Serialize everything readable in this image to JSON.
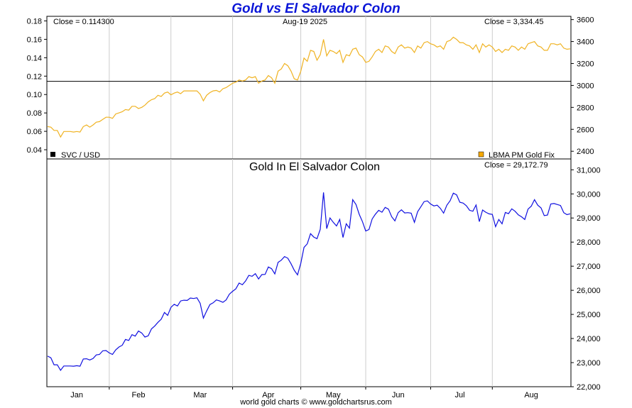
{
  "title": "Gold vs El Salvador Colon",
  "footer": "world gold charts © www.goldchartsrus.com",
  "colors": {
    "gold_line": "#f0b323",
    "colon_line": "#1010e0",
    "ratio_line": "#000000",
    "title": "#0b16d8",
    "legend_gold": "#f5a800",
    "legend_svc": "#000000"
  },
  "chart_data": [
    {
      "type": "line",
      "panel": "top",
      "date_label": "Aug-19  2025",
      "left_axis": {
        "ticks": [
          "0.18",
          "0.16",
          "0.14",
          "0.12",
          "0.10",
          "0.08",
          "0.06",
          "0.04"
        ],
        "values": [
          0.18,
          0.16,
          0.14,
          0.12,
          0.1,
          0.08,
          0.06,
          0.04
        ],
        "ylim": [
          0.03,
          0.185
        ]
      },
      "right_axis": {
        "ticks": [
          "3600",
          "3400",
          "3200",
          "3000",
          "2800",
          "2600",
          "2400"
        ],
        "values": [
          3600,
          3400,
          3200,
          3000,
          2800,
          2600,
          2400
        ],
        "ylim": [
          2330,
          3630
        ]
      },
      "left_close_label": "Close = 0.114300",
      "right_close_label": "Close = 3,334.45",
      "legend": {
        "svc": "SVC / USD",
        "gold": "LBMA PM Gold Fix"
      },
      "series": [
        {
          "name": "SVC / USD",
          "axis": "left",
          "color": "#000000",
          "x": [
            0,
            161
          ],
          "values": [
            0.1143,
            0.1143
          ]
        },
        {
          "name": "LBMA PM Gold Fix",
          "axis": "right",
          "color": "#f0b323",
          "x": [
            0,
            1,
            2,
            3,
            4,
            5,
            6,
            7,
            8,
            9,
            10,
            11,
            12,
            13,
            14,
            15,
            16,
            17,
            18,
            19,
            20,
            21,
            22,
            23,
            24,
            25,
            26,
            27,
            28,
            29,
            30,
            31,
            32,
            33,
            34,
            35,
            36,
            37,
            38,
            39,
            40,
            41,
            42,
            43,
            44,
            45,
            46,
            47,
            48,
            49,
            50,
            51,
            52,
            53,
            54,
            55,
            56,
            57,
            58,
            59,
            60,
            61,
            62,
            63,
            64,
            65,
            66,
            67,
            68,
            69,
            70,
            71,
            72,
            73,
            74,
            75,
            76,
            77,
            78,
            79,
            80,
            81,
            82,
            83,
            84,
            85,
            86,
            87,
            88,
            89,
            90,
            91,
            92,
            93,
            94,
            95,
            96,
            97,
            98,
            99,
            100,
            101,
            102,
            103,
            104,
            105,
            106,
            107,
            108,
            109,
            110,
            111,
            112,
            113,
            114,
            115,
            116,
            117,
            118,
            119,
            120,
            121,
            122,
            123,
            124,
            125,
            126,
            127,
            128,
            129,
            130,
            131,
            132,
            133,
            134,
            135,
            136,
            137,
            138,
            139,
            140,
            141,
            142,
            143,
            144,
            145,
            146,
            147,
            148,
            149,
            150,
            151,
            152,
            153,
            154,
            155,
            156,
            157,
            158,
            159,
            160,
            161
          ],
          "values": [
            2625,
            2620,
            2590,
            2590,
            2530,
            2580,
            2580,
            2580,
            2575,
            2580,
            2575,
            2625,
            2640,
            2620,
            2640,
            2665,
            2670,
            2690,
            2710,
            2710,
            2700,
            2740,
            2750,
            2760,
            2780,
            2775,
            2810,
            2810,
            2790,
            2800,
            2820,
            2850,
            2870,
            2880,
            2910,
            2900,
            2930,
            2940,
            2915,
            2930,
            2940,
            2925,
            2950,
            2950,
            2950,
            2950,
            2950,
            2920,
            2860,
            2910,
            2935,
            2950,
            2955,
            2940,
            2970,
            2980,
            3000,
            3020,
            3030,
            3050,
            3040,
            3050,
            3080,
            3070,
            3080,
            3020,
            3040,
            3050,
            3090,
            3070,
            3020,
            3130,
            3150,
            3200,
            3180,
            3130,
            3060,
            3050,
            3130,
            3250,
            3220,
            3320,
            3310,
            3230,
            3280,
            3420,
            3270,
            3320,
            3310,
            3290,
            3320,
            3210,
            3280,
            3270,
            3330,
            3340,
            3280,
            3260,
            3210,
            3220,
            3260,
            3310,
            3330,
            3300,
            3360,
            3350,
            3310,
            3290,
            3350,
            3370,
            3340,
            3350,
            3340,
            3300,
            3360,
            3340,
            3390,
            3400,
            3380,
            3370,
            3350,
            3360,
            3330,
            3400,
            3410,
            3440,
            3420,
            3390,
            3390,
            3370,
            3360,
            3330,
            3370,
            3300,
            3380,
            3350,
            3370,
            3350,
            3310,
            3330,
            3300,
            3330,
            3320,
            3360,
            3350,
            3320,
            3350,
            3330,
            3380,
            3390,
            3400,
            3360,
            3350,
            3320,
            3320,
            3380,
            3380,
            3370,
            3380,
            3340,
            3330,
            3334
          ]
        }
      ]
    },
    {
      "type": "line",
      "panel": "bottom",
      "title": "Gold In El Salvador Colon",
      "close_label": "Close = 29,172.79",
      "right_axis": {
        "ticks": [
          "31,000",
          "30,000",
          "29,000",
          "28,000",
          "27,000",
          "26,000",
          "25,000",
          "24,000",
          "23,000",
          "22,000"
        ],
        "values": [
          31000,
          30000,
          29000,
          28000,
          27000,
          26000,
          25000,
          24000,
          23000,
          22000
        ],
        "ylim": [
          22000,
          31450
        ]
      },
      "xaxis": {
        "ticks": [
          "Jan",
          "Feb",
          "Mar",
          "Apr",
          "May",
          "Jun",
          "Jul",
          "Aug"
        ],
        "positions": [
          9,
          28,
          47,
          68,
          88,
          108,
          127,
          149
        ]
      },
      "series": [
        {
          "name": "Gold In El Salvador Colon",
          "color": "#1010e0",
          "x": [
            0,
            1,
            2,
            3,
            4,
            5,
            6,
            7,
            8,
            9,
            10,
            11,
            12,
            13,
            14,
            15,
            16,
            17,
            18,
            19,
            20,
            21,
            22,
            23,
            24,
            25,
            26,
            27,
            28,
            29,
            30,
            31,
            32,
            33,
            34,
            35,
            36,
            37,
            38,
            39,
            40,
            41,
            42,
            43,
            44,
            45,
            46,
            47,
            48,
            49,
            50,
            51,
            52,
            53,
            54,
            55,
            56,
            57,
            58,
            59,
            60,
            61,
            62,
            63,
            64,
            65,
            66,
            67,
            68,
            69,
            70,
            71,
            72,
            73,
            74,
            75,
            76,
            77,
            78,
            79,
            80,
            81,
            82,
            83,
            84,
            85,
            86,
            87,
            88,
            89,
            90,
            91,
            92,
            93,
            94,
            95,
            96,
            97,
            98,
            99,
            100,
            101,
            102,
            103,
            104,
            105,
            106,
            107,
            108,
            109,
            110,
            111,
            112,
            113,
            114,
            115,
            116,
            117,
            118,
            119,
            120,
            121,
            122,
            123,
            124,
            125,
            126,
            127,
            128,
            129,
            130,
            131,
            132,
            133,
            134,
            135,
            136,
            137,
            138,
            139,
            140,
            141,
            142,
            143,
            144,
            145,
            146,
            147,
            148,
            149,
            150,
            151,
            152,
            153,
            154,
            155,
            156,
            157,
            158,
            159,
            160,
            161
          ],
          "values": [
            23270,
            23200,
            22910,
            22910,
            22680,
            22860,
            22860,
            22860,
            22850,
            22870,
            22850,
            23150,
            23160,
            23110,
            23170,
            23320,
            23340,
            23490,
            23500,
            23400,
            23340,
            23530,
            23650,
            23720,
            23960,
            23920,
            24160,
            24100,
            24310,
            24230,
            24060,
            24110,
            24400,
            24520,
            24670,
            24800,
            25080,
            24960,
            25290,
            25420,
            25350,
            25560,
            25590,
            25580,
            25680,
            25660,
            25690,
            25460,
            24850,
            25140,
            25410,
            25480,
            25600,
            25560,
            25500,
            25600,
            25840,
            25960,
            26060,
            26300,
            26230,
            26390,
            26620,
            26580,
            26690,
            26470,
            26650,
            26660,
            26970,
            26900,
            26680,
            27160,
            27250,
            27400,
            27330,
            27100,
            26830,
            26640,
            27120,
            27780,
            27930,
            28350,
            28210,
            28140,
            28530,
            30060,
            28560,
            29000,
            28820,
            28670,
            28940,
            28190,
            28760,
            28580,
            29760,
            29560,
            29150,
            28850,
            28460,
            28520,
            28960,
            29160,
            29320,
            29240,
            29440,
            29370,
            29050,
            28880,
            29220,
            29340,
            29210,
            29220,
            29200,
            28820,
            29260,
            29470,
            29680,
            29710,
            29580,
            29500,
            29530,
            29400,
            29200,
            29530,
            29720,
            30030,
            29960,
            29650,
            29620,
            29510,
            29320,
            29280,
            29540,
            28850,
            29330,
            29240,
            29170,
            29150,
            28640,
            28940,
            28760,
            29230,
            29180,
            29380,
            29280,
            29130,
            29050,
            28940,
            29370,
            29490,
            29760,
            29530,
            29420,
            29100,
            29120,
            29580,
            29600,
            29560,
            29520,
            29220,
            29140,
            29173
          ]
        }
      ]
    }
  ]
}
